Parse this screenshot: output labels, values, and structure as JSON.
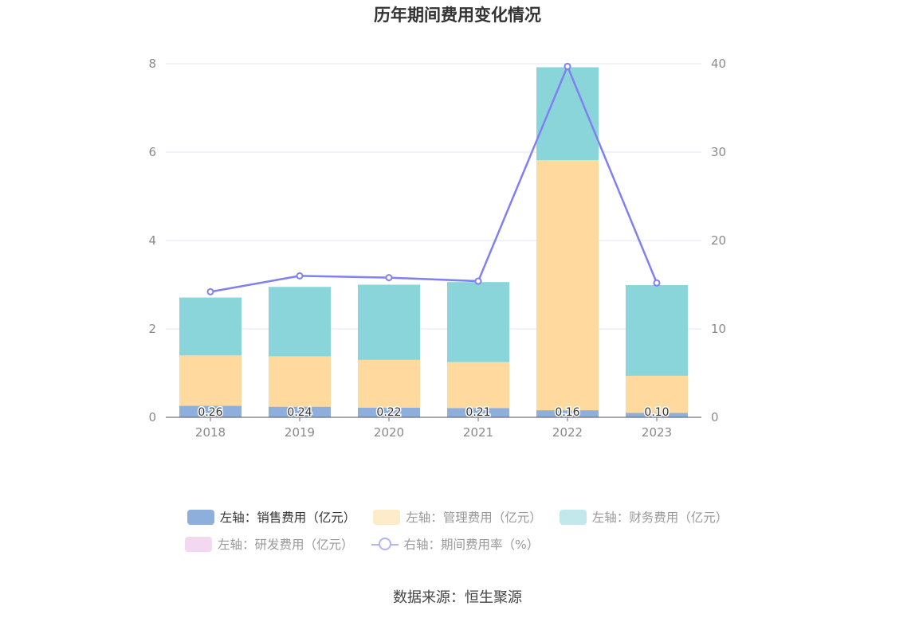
{
  "chart_data": {
    "type": "bar",
    "title": "历年期间费用变化情况",
    "categories": [
      "2018",
      "2019",
      "2020",
      "2021",
      "2022",
      "2023"
    ],
    "stacked": true,
    "series": [
      {
        "name": "左轴：销售费用（亿元）",
        "axis": "left",
        "color": "#8eaedb",
        "values": [
          0.26,
          0.24,
          0.22,
          0.21,
          0.16,
          0.1
        ],
        "labels": [
          "0.26",
          "0.24",
          "0.22",
          "0.21",
          "0.16",
          "0.10"
        ]
      },
      {
        "name": "左轴：管理费用（亿元）",
        "axis": "left",
        "color": "#ffd99d",
        "values": [
          1.14,
          1.14,
          1.08,
          1.04,
          5.66,
          0.84
        ]
      },
      {
        "name": "左轴：财务费用（亿元）",
        "axis": "left",
        "color": "#89d5d9",
        "values": [
          1.31,
          1.57,
          1.7,
          1.81,
          2.1,
          2.05
        ]
      },
      {
        "name": "左轴：研发费用（亿元）",
        "axis": "left",
        "color": "#f2d9ef",
        "values": [
          0,
          0,
          0,
          0,
          0,
          0
        ]
      },
      {
        "name": "右轴：期间费用率（%）",
        "axis": "right",
        "type": "line",
        "color": "#8080f0",
        "values": [
          14.2,
          16.0,
          15.8,
          15.4,
          39.7,
          15.2
        ]
      }
    ],
    "y_left": {
      "range": [
        0,
        8
      ],
      "ticks": [
        "0",
        "2",
        "4",
        "6",
        "8"
      ]
    },
    "y_right": {
      "range": [
        0,
        40
      ],
      "ticks": [
        "0",
        "10",
        "20",
        "30",
        "40"
      ]
    },
    "grid": true,
    "legend_position": "bottom"
  },
  "legend": {
    "items": [
      {
        "label": "左轴：销售费用（亿元）",
        "color": "#8eaedb",
        "active": true
      },
      {
        "label": "左轴：管理费用（亿元）",
        "color": "#fdebc9",
        "active": false
      },
      {
        "label": "左轴：财务费用（亿元）",
        "color": "#c3e8eb",
        "active": false
      },
      {
        "label": "左轴：研发费用（亿元）",
        "color": "#f2d9ef",
        "active": false
      },
      {
        "label": "右轴：期间费用率（%）",
        "color": "#b3b3f5",
        "active": false,
        "line": true
      }
    ]
  },
  "source": "数据来源：恒生聚源"
}
